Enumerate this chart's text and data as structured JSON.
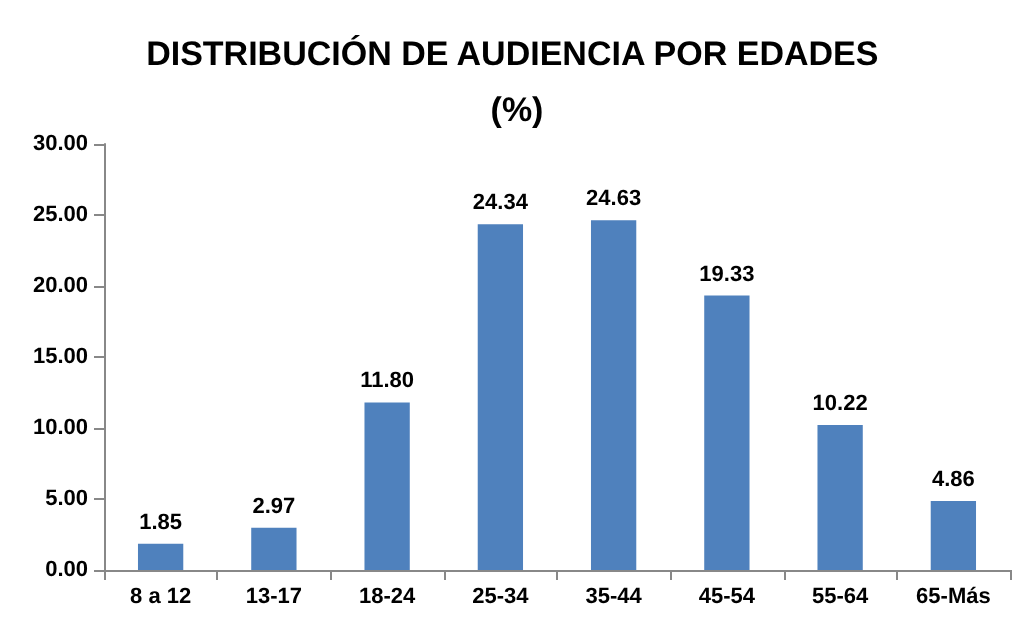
{
  "chart_data": {
    "type": "bar",
    "title": "DISTRIBUCIÓN DE AUDIENCIA POR EDADES (%)",
    "categories": [
      "8 a 12",
      "13-17",
      "18-24",
      "25-34",
      "35-44",
      "45-54",
      "55-64",
      "65-Más"
    ],
    "values": [
      1.85,
      2.97,
      11.8,
      24.34,
      24.63,
      19.33,
      10.22,
      4.86
    ],
    "value_labels": [
      "1.85",
      "2.97",
      "11.80",
      "24.34",
      "24.63",
      "19.33",
      "10.22",
      "4.86"
    ],
    "color": "#4f81bd",
    "ylim": [
      0,
      30
    ],
    "yticks": [
      {
        "value": 0,
        "label": "0.00"
      },
      {
        "value": 5,
        "label": "5.00"
      },
      {
        "value": 10,
        "label": "10.00"
      },
      {
        "value": 15,
        "label": "15.00"
      },
      {
        "value": 20,
        "label": "20.00"
      },
      {
        "value": 25,
        "label": "25.00"
      },
      {
        "value": 30,
        "label": "30.00"
      }
    ],
    "grid": false
  }
}
